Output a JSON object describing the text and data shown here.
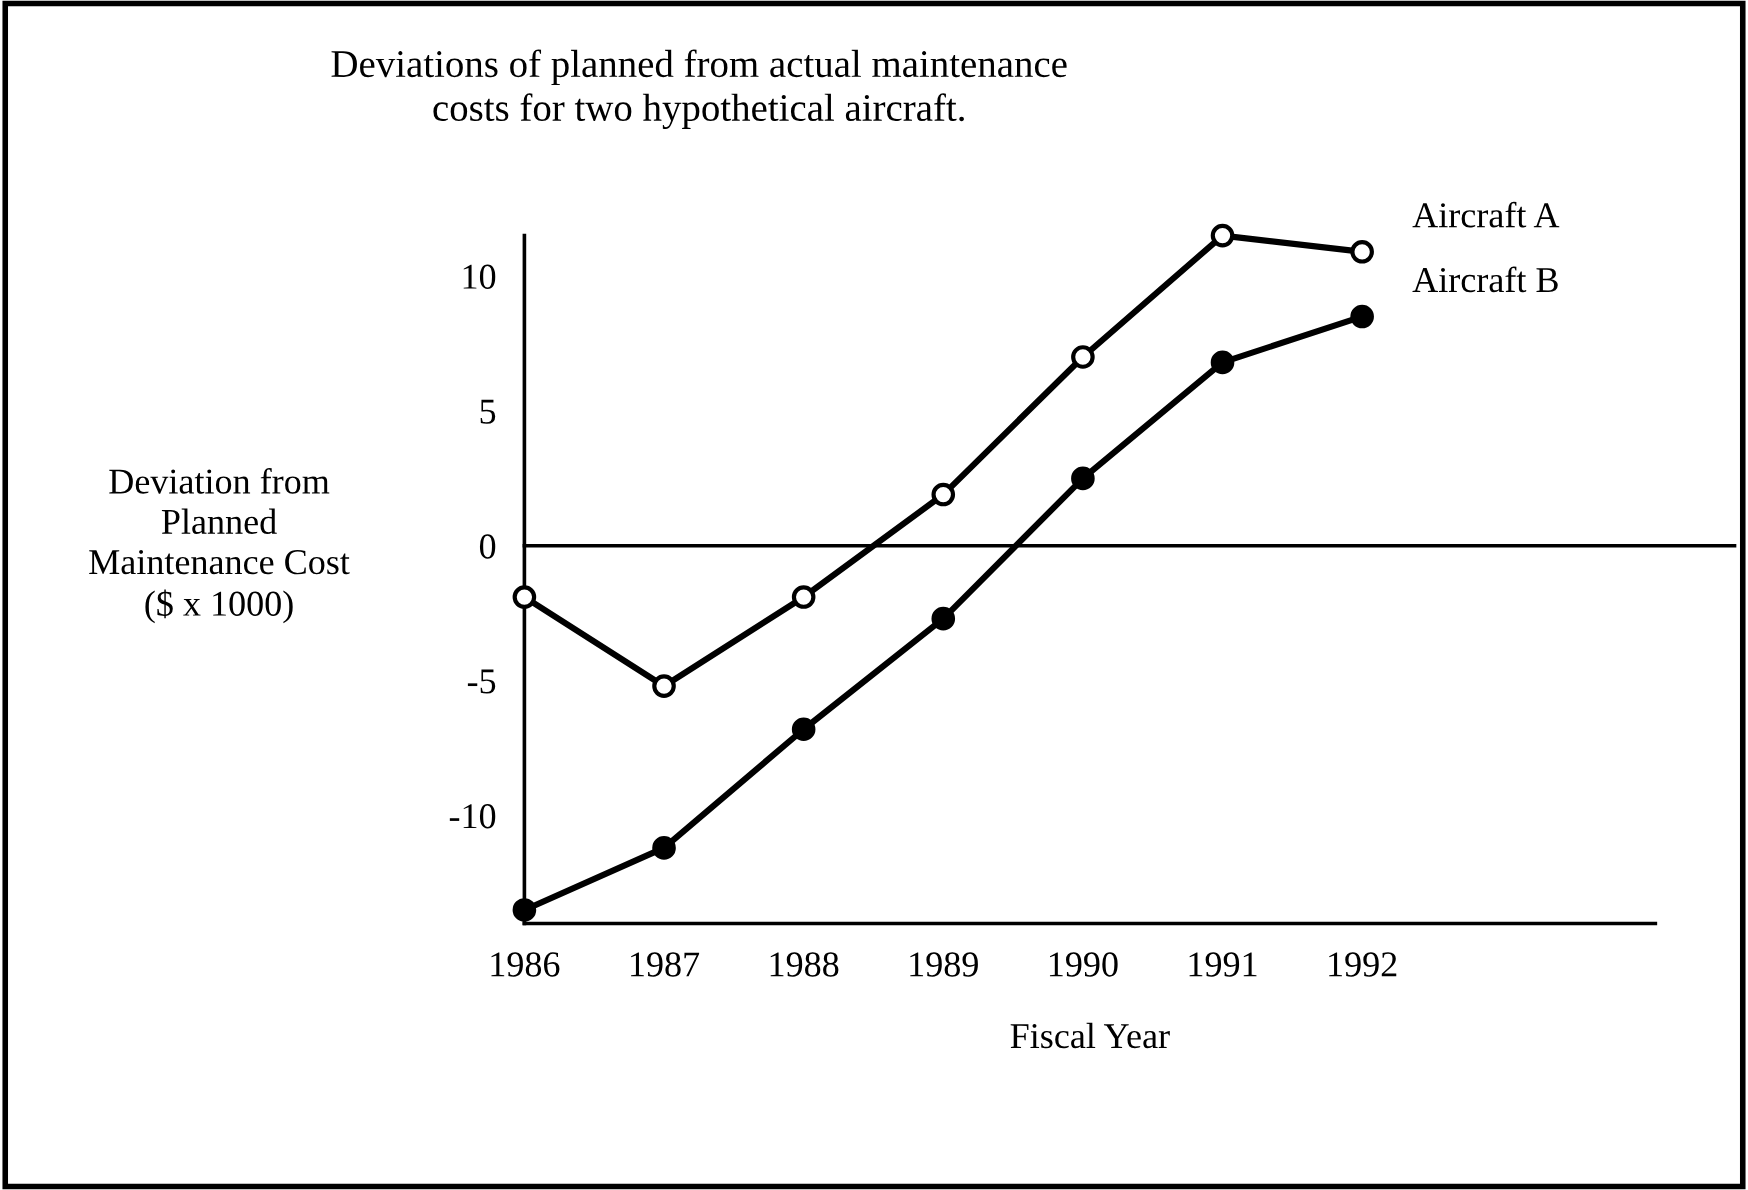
{
  "chart_data": {
    "type": "line",
    "title": "Deviations of planned from actual maintenance\ncosts for two hypothetical aircraft.",
    "xlabel": "Fiscal Year",
    "ylabel": "Deviation from\nPlanned\nMaintenance Cost\n($ x 1000)",
    "x": [
      1986,
      1987,
      1988,
      1989,
      1990,
      1991,
      1992
    ],
    "series": [
      {
        "name": "Aircraft A",
        "color": "#000000",
        "values": [
          -1.9,
          -5.2,
          -1.9,
          1.9,
          7.0,
          11.5,
          10.9
        ]
      },
      {
        "name": "Aircraft B",
        "color": "#000000",
        "values": [
          -13.5,
          -11.2,
          -6.8,
          -2.7,
          2.5,
          6.8,
          8.5
        ]
      }
    ],
    "xlim": [
      1986,
      1994.1
    ],
    "ylim": [
      -14,
      11.5
    ],
    "xticks": [
      1986,
      1987,
      1988,
      1989,
      1990,
      1991,
      1992
    ],
    "yticks": [
      {
        "value": -10,
        "label": "-10"
      },
      {
        "value": -5,
        "label": "-5"
      },
      0,
      5,
      10
    ],
    "ref_lines": [
      {
        "axis": "y",
        "value": 0,
        "color": "#000000"
      }
    ],
    "marker": "circle",
    "line_style": "solid",
    "grid": false,
    "legend": false
  }
}
